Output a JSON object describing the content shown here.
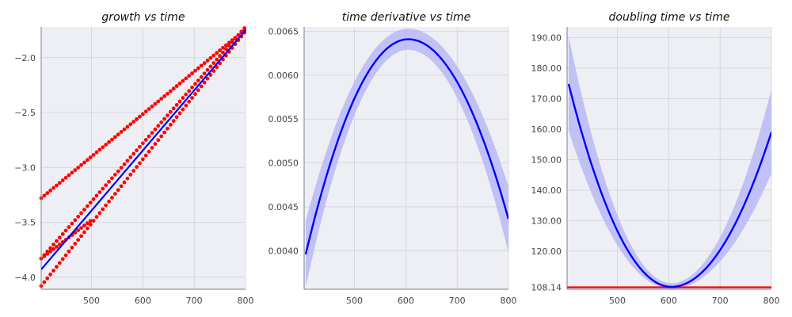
{
  "chart_data": [
    {
      "type": "scatter",
      "title": "growth vs time",
      "xlabel": "",
      "ylabel": "",
      "xlim": [
        402,
        800
      ],
      "ylim": [
        -4.11,
        -1.72
      ],
      "xticks": [
        500,
        600,
        700,
        800
      ],
      "yticks": [
        -4.0,
        -3.5,
        -3.0,
        -2.5,
        -2.0
      ],
      "ytick_labels": [
        "−4.0",
        "−3.5",
        "−3.0",
        "−2.5",
        "−2.0"
      ],
      "grid": true,
      "colors": {
        "points": "#ff0000",
        "fit": "#0000ff"
      },
      "scatter_bands": [
        {
          "x_range": [
            402,
            800
          ],
          "y_range": [
            -3.83,
            -1.72
          ]
        },
        {
          "x_range": [
            402,
            800
          ],
          "y_range": [
            -4.08,
            -1.76
          ]
        },
        {
          "x_range": [
            402,
            800
          ],
          "y_range": [
            -3.28,
            -1.74
          ]
        },
        {
          "x_range": [
            402,
            500
          ],
          "y_range": [
            -3.83,
            -3.48
          ]
        }
      ],
      "fit_line": {
        "x": [
          402,
          800
        ],
        "y": [
          -3.93,
          -1.75
        ]
      }
    },
    {
      "type": "line",
      "title": "time derivative vs time",
      "xlabel": "",
      "ylabel": "",
      "xlim": [
        402,
        800
      ],
      "ylim": [
        0.00356,
        0.00655
      ],
      "xticks": [
        500,
        600,
        700,
        800
      ],
      "yticks": [
        0.004,
        0.0045,
        0.005,
        0.0055,
        0.006,
        0.0065
      ],
      "ytick_labels": [
        "0.0040",
        "0.0045",
        "0.0050",
        "0.0055",
        "0.0060",
        "0.0065"
      ],
      "grid": true,
      "colors": {
        "line": "#0000ff",
        "band": "#b8b8f4"
      },
      "curve": {
        "x_peak": 605,
        "y_peak": 0.00641,
        "x": [
          405,
          800
        ],
        "y": [
          0.00396,
          0.00436
        ]
      },
      "band": {
        "upper": {
          "x": [
            405,
            605,
            800
          ],
          "y": [
            0.00434,
            0.00653,
            0.00473
          ]
        },
        "lower": {
          "x": [
            405,
            605,
            800
          ],
          "y": [
            0.00358,
            0.00629,
            0.00398
          ]
        }
      }
    },
    {
      "type": "line",
      "title": "doubling time vs time",
      "xlabel": "",
      "ylabel": "",
      "xlim": [
        402,
        800
      ],
      "ylim": [
        107.5,
        193.5
      ],
      "xticks": [
        500,
        600,
        700,
        800
      ],
      "yticks": [
        108.14,
        120,
        130,
        140,
        150,
        160,
        170,
        180,
        190
      ],
      "ytick_labels": [
        "108.14",
        "120.00",
        "130.00",
        "140.00",
        "150.00",
        "160.00",
        "170.00",
        "180.00",
        "190.00"
      ],
      "grid": true,
      "colors": {
        "line": "#0000ff",
        "band": "#b8b8f4",
        "hline": "#ff0000"
      },
      "hline": 108.14,
      "curve": {
        "x_min": 605,
        "y_min": 108.3,
        "x": [
          405,
          800
        ],
        "y": [
          174.8,
          159.0
        ]
      },
      "band": {
        "upper": {
          "x": [
            405,
            605,
            800
          ],
          "y": [
            190.5,
            109.5,
            173.0
          ]
        },
        "lower": {
          "x": [
            405,
            605,
            800
          ],
          "y": [
            159.5,
            107.6,
            145.5
          ]
        }
      }
    }
  ]
}
